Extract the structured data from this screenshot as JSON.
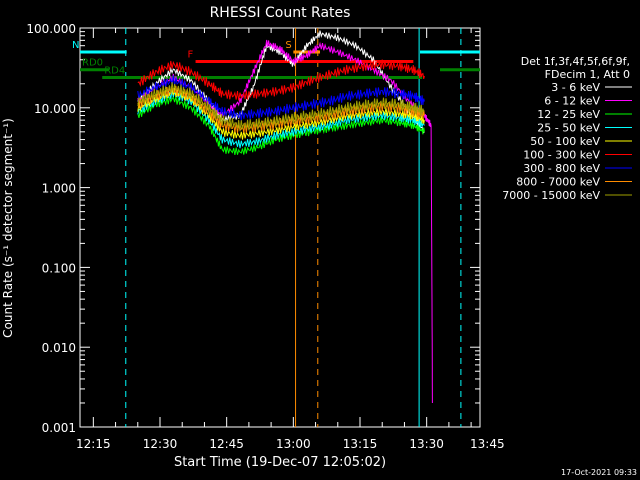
{
  "chart_data": {
    "type": "line",
    "title": "RHESSI Count Rates",
    "xlabel": "Start Time (19-Dec-07 12:05:02)",
    "ylabel": "Count Rate (s⁻¹ detector segment⁻¹)",
    "y_scale": "log",
    "ylim": [
      0.001,
      100
    ],
    "xlim_minutes": [
      12.0,
      102.0
    ],
    "x_ticks": [
      {
        "label": "12:15",
        "min": 15
      },
      {
        "label": "12:30",
        "min": 30
      },
      {
        "label": "12:45",
        "min": 45
      },
      {
        "label": "13:00",
        "min": 60
      },
      {
        "label": "13:15",
        "min": 75
      },
      {
        "label": "13:30",
        "min": 90
      },
      {
        "label": "13:45",
        "min": 105
      }
    ],
    "y_ticks": [
      "100.000",
      "10.000",
      "1.000",
      "0.100",
      "0.010",
      "0.001"
    ],
    "legend_header": [
      "Det 1f,3f,4f,5f,6f,9f,",
      "FDecim 1, Att 0"
    ],
    "legend_placement": "right",
    "series": [
      {
        "name": "3 - 6 keV",
        "color": "#ffffff",
        "x": [
          25,
          29,
          33,
          37,
          41,
          44,
          48,
          51,
          54,
          57,
          60,
          63,
          66,
          70,
          74,
          78,
          82,
          86,
          89.5
        ],
        "y": [
          12,
          20,
          30,
          22,
          12,
          7,
          8,
          18,
          60,
          50,
          35,
          60,
          85,
          75,
          60,
          40,
          18,
          9,
          5
        ]
      },
      {
        "name": "6 - 12 keV",
        "color": "#ff00ff",
        "x": [
          25,
          29,
          33,
          37,
          41,
          44,
          48,
          51,
          54,
          57,
          60,
          63,
          66,
          70,
          74,
          78,
          82,
          86,
          89.5,
          91,
          91.3
        ],
        "y": [
          12,
          18,
          24,
          18,
          11,
          8,
          12,
          28,
          65,
          55,
          38,
          45,
          60,
          50,
          40,
          30,
          22,
          12,
          8,
          6,
          0.002
        ]
      },
      {
        "name": "12 - 25 keV",
        "color": "#00ff00",
        "x": [
          25,
          29,
          33,
          37,
          41,
          44,
          48,
          52,
          56,
          60,
          64,
          68,
          72,
          76,
          80,
          84,
          87,
          89.5
        ],
        "y": [
          8,
          11,
          13,
          10,
          6,
          3,
          2.8,
          3.2,
          4,
          4.5,
          5,
          5.5,
          6,
          6.5,
          7,
          6.5,
          6,
          5
        ]
      },
      {
        "name": "25 - 50 keV",
        "color": "#00ffff",
        "x": [
          25,
          29,
          33,
          37,
          41,
          44,
          48,
          52,
          56,
          60,
          64,
          68,
          72,
          76,
          80,
          84,
          87,
          89.5
        ],
        "y": [
          9,
          12,
          15,
          12,
          7,
          4,
          3.5,
          3.8,
          4.5,
          5,
          5.5,
          6,
          7,
          7.5,
          8,
          7.5,
          7,
          6
        ]
      },
      {
        "name": "50 - 100 keV",
        "color": "#ffff00",
        "x": [
          25,
          29,
          33,
          37,
          41,
          44,
          48,
          52,
          56,
          60,
          64,
          68,
          72,
          76,
          80,
          84,
          87,
          89.5
        ],
        "y": [
          10,
          13,
          16,
          13,
          8,
          5,
          4.5,
          4.8,
          5.2,
          5.8,
          6.3,
          7,
          8,
          8.5,
          9,
          8.5,
          8,
          7
        ]
      },
      {
        "name": "100 - 300 keV",
        "color": "#ff0000",
        "x": [
          25,
          29,
          33,
          37,
          41,
          44,
          48,
          52,
          56,
          60,
          64,
          68,
          72,
          76,
          80,
          84,
          87,
          89.5
        ],
        "y": [
          20,
          28,
          35,
          28,
          20,
          15,
          14,
          15,
          16,
          18,
          22,
          26,
          30,
          33,
          35,
          33,
          30,
          25
        ]
      },
      {
        "name": "300 - 800 keV",
        "color": "#0000ff",
        "x": [
          25,
          29,
          33,
          37,
          41,
          44,
          48,
          52,
          56,
          60,
          64,
          68,
          72,
          76,
          80,
          84,
          87,
          89.5
        ],
        "y": [
          14,
          18,
          22,
          18,
          12,
          9,
          8,
          8.5,
          9,
          10,
          11,
          12,
          14,
          15,
          16,
          15,
          14,
          12
        ]
      },
      {
        "name": "800 - 7000 keV",
        "color": "#ff8c00",
        "x": [
          25,
          29,
          33,
          37,
          41,
          44,
          48,
          52,
          56,
          60,
          64,
          68,
          72,
          76,
          80,
          84,
          87,
          89.5
        ],
        "y": [
          11,
          14,
          17,
          14,
          9,
          6,
          5.5,
          5.8,
          6.2,
          6.8,
          7.3,
          8,
          9,
          9.8,
          10.5,
          10,
          9,
          8
        ]
      },
      {
        "name": "7000 - 15000 keV",
        "color": "#a0a000",
        "x": [
          25,
          29,
          33,
          37,
          41,
          44,
          48,
          52,
          56,
          60,
          64,
          68,
          72,
          76,
          80,
          84,
          87,
          89.5
        ],
        "y": [
          12,
          15,
          18,
          15,
          10,
          7,
          6,
          6.3,
          6.8,
          7.5,
          8,
          8.8,
          10,
          10.8,
          11.5,
          11,
          10,
          9
        ]
      }
    ],
    "annotations": [
      {
        "label": "N",
        "color": "#00ffff",
        "segments": [
          [
            12,
            22.5,
            50
          ],
          [
            88.5,
            102,
            50
          ]
        ]
      },
      {
        "label": "RD0",
        "color": "#008000",
        "segments": [
          [
            12,
            18.5,
            30
          ],
          [
            93,
            102,
            30
          ]
        ]
      },
      {
        "label": "RD4",
        "color": "#008000",
        "segments": [
          [
            17,
            89,
            24
          ]
        ]
      },
      {
        "label": "F",
        "color": "#ff0000",
        "segments": [
          [
            38,
            87,
            38
          ]
        ]
      },
      {
        "label": "S",
        "color": "#ff8c00",
        "segments": [
          [
            60,
            66,
            50
          ]
        ]
      }
    ],
    "vertical_lines": [
      {
        "color": "#00ffff",
        "style": "dashed",
        "x": 22.3
      },
      {
        "color": "#00ffff",
        "style": "dashed",
        "x": 97.7
      },
      {
        "color": "#00ffff",
        "style": "solid",
        "x": 88.3
      },
      {
        "color": "#ff8c00",
        "style": "solid",
        "x": 60.5
      },
      {
        "color": "#ff8c00",
        "style": "dashed",
        "x": 65.5
      }
    ],
    "grid": false
  },
  "footer": {
    "timestamp": "17-Oct-2021 09:33"
  }
}
